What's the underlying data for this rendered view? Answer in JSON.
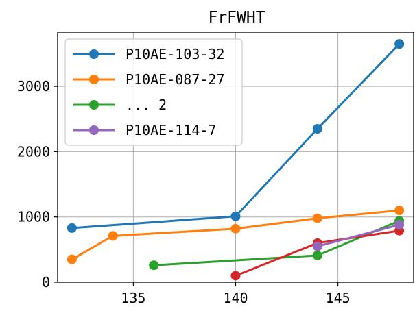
{
  "chart_data": {
    "type": "line",
    "title": "FrFWHT",
    "xlabel": "",
    "ylabel": "",
    "xlim": [
      131.3,
      148.7
    ],
    "ylim": [
      0,
      3830
    ],
    "xticks": [
      135,
      140,
      145
    ],
    "yticks": [
      0,
      1000,
      2000,
      3000
    ],
    "grid": true,
    "legend_position": "top-left",
    "series": [
      {
        "name": "P10AE-103-32",
        "color": "#1f77b4",
        "x": [
          132,
          140,
          144,
          148
        ],
        "y": [
          830,
          1010,
          2350,
          3650
        ]
      },
      {
        "name": "P10AE-087-27",
        "color": "#ff7f0e",
        "x": [
          132,
          134,
          140,
          144,
          148
        ],
        "y": [
          350,
          710,
          820,
          980,
          1100
        ]
      },
      {
        "name": "... 2",
        "color": "#2ca02c",
        "x": [
          136,
          144,
          148
        ],
        "y": [
          260,
          410,
          940
        ]
      },
      {
        "name": "",
        "color": "#d62728",
        "x": [
          140,
          144,
          148
        ],
        "y": [
          100,
          600,
          790
        ]
      },
      {
        "name": "P10AE-114-7",
        "color": "#9467bd",
        "x": [
          144,
          148
        ],
        "y": [
          550,
          880
        ]
      }
    ],
    "legend": [
      "P10AE-103-32",
      "P10AE-087-27",
      "... 2",
      "P10AE-114-7"
    ]
  }
}
